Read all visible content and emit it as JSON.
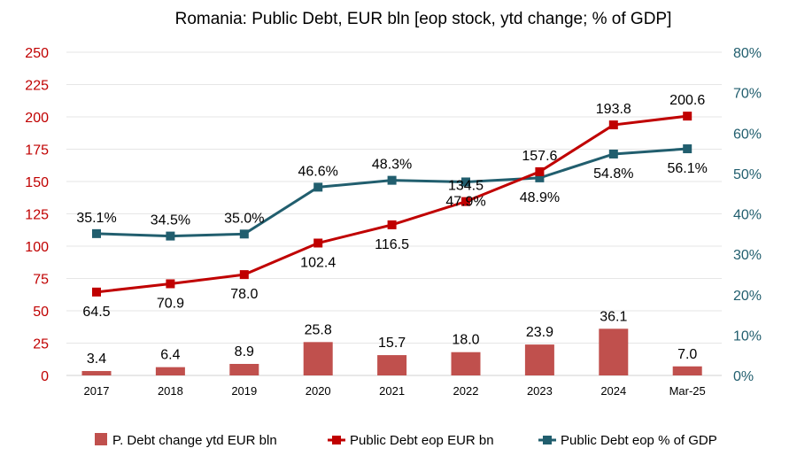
{
  "chart_data": {
    "type": "bar+line",
    "title": "Romania: Public Debt, EUR bln [eop stock, ytd change; % of GDP]",
    "categories": [
      "2017",
      "2018",
      "2019",
      "2020",
      "2021",
      "2022",
      "2023",
      "2024",
      "Mar-25"
    ],
    "series": [
      {
        "name": "P. Debt change ytd EUR bln",
        "type": "bar",
        "axis": "left",
        "color": "#c0504d",
        "values": [
          3.4,
          6.4,
          8.9,
          25.8,
          15.7,
          18.0,
          23.9,
          36.1,
          7.0
        ],
        "labels": [
          "3.4",
          "6.4",
          "8.9",
          "25.8",
          "15.7",
          "18.0",
          "23.9",
          "36.1",
          "7.0"
        ]
      },
      {
        "name": "Public Debt eop EUR bn",
        "type": "line",
        "axis": "left",
        "color": "#c00000",
        "values": [
          64.5,
          70.9,
          78.0,
          102.4,
          116.5,
          134.5,
          157.6,
          193.8,
          200.6
        ],
        "labels": [
          "64.5",
          "70.9",
          "78.0",
          "102.4",
          "116.5",
          "134.5",
          "157.6",
          "193.8",
          "200.6"
        ]
      },
      {
        "name": "Public Debt eop % of GDP",
        "type": "line",
        "axis": "right",
        "color": "#215e6e",
        "values": [
          35.1,
          34.5,
          35.0,
          46.6,
          48.3,
          47.9,
          48.9,
          54.8,
          56.1
        ],
        "labels": [
          "35.1%",
          "34.5%",
          "35.0%",
          "46.6%",
          "48.3%",
          "47.9%",
          "48.9%",
          "54.8%",
          "56.1%"
        ]
      }
    ],
    "y_left": {
      "lim": [
        0,
        250
      ],
      "ticks": [
        "0",
        "25",
        "50",
        "75",
        "100",
        "125",
        "150",
        "175",
        "200",
        "225",
        "250"
      ],
      "color": "#c00000"
    },
    "y_right": {
      "lim": [
        0,
        80
      ],
      "ticks": [
        "0%",
        "10%",
        "20%",
        "30%",
        "40%",
        "50%",
        "60%",
        "70%",
        "80%"
      ],
      "color": "#215e6e"
    },
    "grid": true,
    "legend": "bottom"
  }
}
